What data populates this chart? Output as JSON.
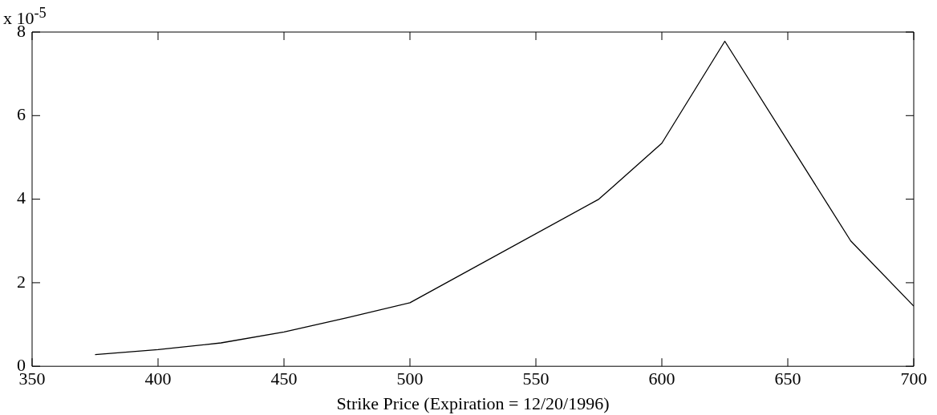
{
  "chart_data": {
    "type": "line",
    "xlabel": "Strike Price (Expiration = 12/20/1996)",
    "annotations": [
      "x 10$^{-5}$"
    ],
    "x": [
      375,
      400,
      425,
      450,
      475,
      500,
      575,
      600,
      625,
      675,
      700
    ],
    "series": [
      {
        "color": "#000000",
        "values": [
          0.28,
          0.4,
          0.56,
          0.82,
          1.16,
          1.52,
          4.0,
          5.34,
          7.78,
          3.0,
          1.44
        ]
      }
    ],
    "xlim": [
      350,
      700
    ],
    "xticks": [
      350,
      400,
      450,
      500,
      550,
      600,
      650,
      700
    ],
    "ylim": [
      0,
      8
    ],
    "yticks": [
      0,
      2,
      4,
      6,
      8
    ],
    "grid": false,
    "legend": false,
    "marker": "none",
    "line_style": "solid"
  }
}
